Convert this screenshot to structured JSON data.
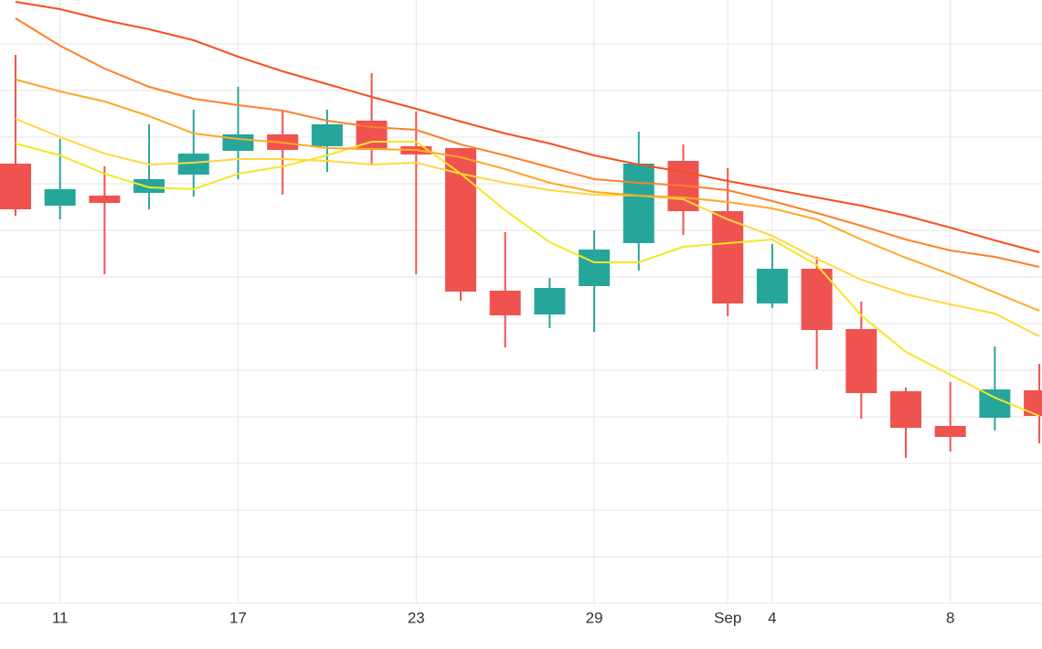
{
  "chart_data": {
    "type": "candlestick",
    "categories": [
      null,
      "11",
      null,
      null,
      null,
      "17",
      null,
      null,
      null,
      "23",
      null,
      null,
      null,
      "29",
      null,
      null,
      "Sep",
      "4",
      null,
      null,
      null,
      "8",
      null,
      null
    ],
    "open": [
      481,
      435,
      446,
      449,
      469,
      495,
      513,
      500,
      528,
      500,
      498,
      342,
      316,
      347,
      394,
      484,
      429,
      328,
      366,
      300,
      232,
      194,
      203,
      233
    ],
    "high": [
      600,
      508,
      478,
      524,
      540,
      565,
      539,
      540,
      580,
      538,
      498,
      406,
      356,
      408,
      516,
      502,
      476,
      393,
      379,
      330,
      236,
      242,
      281,
      262
    ],
    "low": [
      424,
      420,
      360,
      431,
      445,
      464,
      447,
      472,
      481,
      360,
      331,
      280,
      301,
      297,
      364,
      403,
      314,
      323,
      256,
      202,
      159,
      166,
      189,
      175
    ],
    "close": [
      431,
      453,
      438,
      464,
      492,
      513,
      496,
      524,
      496,
      491,
      341,
      315,
      345,
      387,
      481,
      429,
      328,
      366,
      299,
      230,
      192,
      182,
      234,
      205
    ],
    "up_color": "#26a69a",
    "down_color": "#ef5350",
    "lines": [
      {
        "color": "#f5e625",
        "values": [
          503,
          490,
          470,
          455,
          453,
          470,
          478,
          490,
          505,
          505,
          470,
          430,
          395,
          373,
          373,
          390,
          394,
          398,
          370,
          315,
          275,
          250,
          225,
          205
        ]
      },
      {
        "color": "#ffd740",
        "values": [
          530,
          510,
          492,
          480,
          482,
          486,
          486,
          484,
          480,
          482,
          470,
          460,
          452,
          447,
          446,
          442,
          420,
          402,
          377,
          354,
          338,
          327,
          317,
          292
        ]
      },
      {
        "color": "#ffa726",
        "values": [
          573,
          560,
          549,
          533,
          514,
          508,
          504,
          498,
          497,
          496,
          488,
          475,
          460,
          450,
          446,
          444,
          439,
          432,
          420,
          398,
          378,
          360,
          340,
          320
        ]
      },
      {
        "color": "#ff7f2a",
        "values": [
          640,
          610,
          585,
          565,
          552,
          545,
          539,
          528,
          521,
          518,
          502,
          490,
          477,
          464,
          460,
          457,
          452,
          440,
          427,
          413,
          398,
          386,
          379,
          368
        ]
      },
      {
        "color": "#f4511e",
        "values": [
          658,
          650,
          638,
          628,
          616,
          598,
          582,
          568,
          554,
          541,
          527,
          514,
          503,
          490,
          480,
          472,
          462,
          453,
          444,
          435,
          424,
          411,
          397,
          384
        ]
      }
    ],
    "ylim": [
      0,
      660
    ],
    "yticks": [
      0,
      51,
      102,
      153,
      204,
      255,
      306,
      357,
      408,
      459,
      510,
      561,
      612
    ],
    "grid": true
  }
}
